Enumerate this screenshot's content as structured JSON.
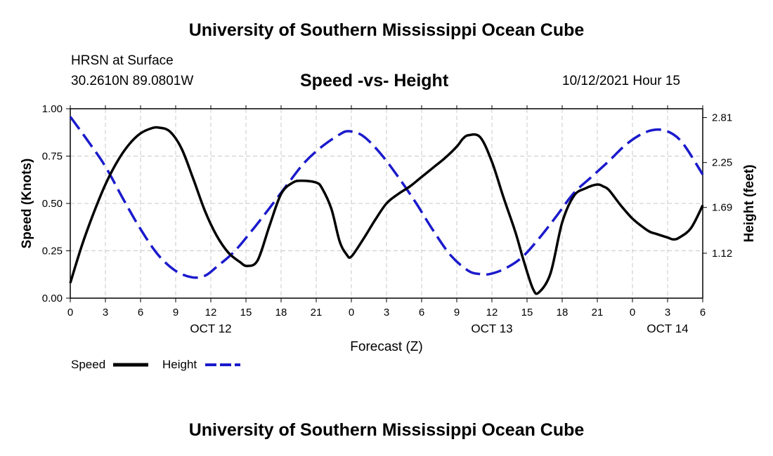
{
  "page": {
    "top_title": "University of Southern Mississippi Ocean Cube",
    "bottom_title": "University of Southern Mississippi Ocean Cube",
    "station": "HRSN at Surface",
    "coords": "30.2610N  89.0801W",
    "datetime": "10/12/2021 Hour 15"
  },
  "chart_data": {
    "type": "line",
    "title": "Speed -vs- Height",
    "xlabel": "Forecast (Z)",
    "ylabel": "Speed (Knots)",
    "y2label": "Height (feet)",
    "xlim": [
      0,
      54
    ],
    "ylim": [
      0,
      1
    ],
    "y2lim": [
      0.56,
      2.92
    ],
    "x_ticks": [
      0,
      3,
      6,
      9,
      12,
      15,
      18,
      21,
      24,
      27,
      30,
      33,
      36,
      39,
      42,
      45,
      48,
      51,
      54
    ],
    "x_tick_labels": [
      "0",
      "3",
      "6",
      "9",
      "12",
      "15",
      "18",
      "21",
      "0",
      "3",
      "6",
      "9",
      "12",
      "15",
      "18",
      "21",
      "0",
      "3",
      "6"
    ],
    "day_labels": [
      {
        "x": 12,
        "label": "OCT 12"
      },
      {
        "x": 36,
        "label": "OCT 13"
      },
      {
        "x": 51,
        "label": "OCT 14"
      }
    ],
    "y_ticks": [
      0,
      0.25,
      0.5,
      0.75,
      1.0
    ],
    "y_tick_labels": [
      "0.00",
      "0.25",
      "0.50",
      "0.75",
      "1.00"
    ],
    "y2_ticks": [
      1.12,
      1.69,
      2.25,
      2.81
    ],
    "y2_tick_labels": [
      "1.12",
      "1.69",
      "2.25",
      "2.81"
    ],
    "grid": true,
    "legend_placement": "bottom-left",
    "series": [
      {
        "name": "Speed",
        "axis": "left",
        "color": "#000000",
        "style": "solid",
        "x": [
          0,
          1,
          2,
          3,
          4,
          5,
          6,
          7,
          7.6,
          8.5,
          9.5,
          10.5,
          11.5,
          12.5,
          13.5,
          14.5,
          15.1,
          16,
          17,
          18,
          19,
          19.8,
          21,
          21.5,
          22.3,
          23,
          23.6,
          24,
          25,
          26,
          27,
          28,
          29,
          30,
          31,
          32,
          33,
          33.5,
          34,
          35,
          36,
          37,
          38,
          38.7,
          39.5,
          40,
          41,
          42,
          43,
          44,
          45,
          45.5,
          46,
          47,
          48,
          49,
          49.5,
          50,
          51,
          51.5,
          52,
          53,
          54
        ],
        "y": [
          0.08,
          0.28,
          0.45,
          0.6,
          0.72,
          0.81,
          0.87,
          0.898,
          0.9,
          0.88,
          0.79,
          0.63,
          0.46,
          0.33,
          0.24,
          0.19,
          0.17,
          0.2,
          0.38,
          0.55,
          0.61,
          0.62,
          0.61,
          0.58,
          0.47,
          0.3,
          0.23,
          0.22,
          0.31,
          0.41,
          0.5,
          0.55,
          0.59,
          0.64,
          0.69,
          0.74,
          0.8,
          0.84,
          0.86,
          0.85,
          0.72,
          0.53,
          0.35,
          0.2,
          0.05,
          0.03,
          0.13,
          0.4,
          0.54,
          0.58,
          0.6,
          0.59,
          0.57,
          0.49,
          0.42,
          0.37,
          0.35,
          0.34,
          0.32,
          0.31,
          0.32,
          0.37,
          0.49
        ]
      },
      {
        "name": "Height",
        "axis": "right",
        "color": "#1a1acc",
        "style": "dashed",
        "x": [
          0,
          1.5,
          3,
          4.5,
          6,
          7.5,
          9,
          10.4,
          11.5,
          12.5,
          14,
          15.5,
          17,
          18.5,
          20,
          21.5,
          23,
          23.8,
          25,
          26.5,
          28,
          29.5,
          31,
          32.5,
          34,
          35,
          35.8,
          37,
          38.5,
          40,
          41.5,
          43,
          44.5,
          46,
          47.5,
          49,
          50.3,
          51.5,
          52.5,
          54
        ],
        "y": [
          2.82,
          2.52,
          2.2,
          1.8,
          1.42,
          1.1,
          0.9,
          0.82,
          0.84,
          0.95,
          1.14,
          1.4,
          1.68,
          1.97,
          2.25,
          2.45,
          2.6,
          2.64,
          2.58,
          2.36,
          2.07,
          1.75,
          1.4,
          1.09,
          0.9,
          0.86,
          0.86,
          0.92,
          1.06,
          1.3,
          1.58,
          1.87,
          2.07,
          2.27,
          2.48,
          2.62,
          2.66,
          2.6,
          2.45,
          2.1
        ]
      }
    ]
  }
}
